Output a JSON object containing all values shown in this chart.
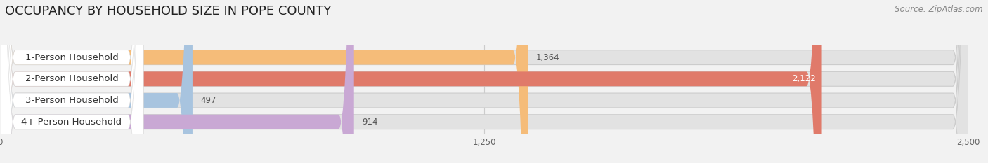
{
  "title": "OCCUPANCY BY HOUSEHOLD SIZE IN POPE COUNTY",
  "source": "Source: ZipAtlas.com",
  "categories": [
    "1-Person Household",
    "2-Person Household",
    "3-Person Household",
    "4+ Person Household"
  ],
  "values": [
    1364,
    2122,
    497,
    914
  ],
  "bar_colors": [
    "#F5BC79",
    "#E07A6A",
    "#A8C4DF",
    "#C9A8D4"
  ],
  "xlim_max": 2500,
  "xticks": [
    0,
    1250,
    2500
  ],
  "value_labels": [
    "1,364",
    "2,122",
    "497",
    "914"
  ],
  "label_color_inside": [
    false,
    true,
    false,
    false
  ],
  "bg_color": "#f2f2f2",
  "bar_bg_color": "#e2e2e2",
  "title_fontsize": 13,
  "label_fontsize": 9.5,
  "value_fontsize": 8.5,
  "source_fontsize": 8.5,
  "bar_height": 0.68,
  "bar_spacing": 1.0
}
